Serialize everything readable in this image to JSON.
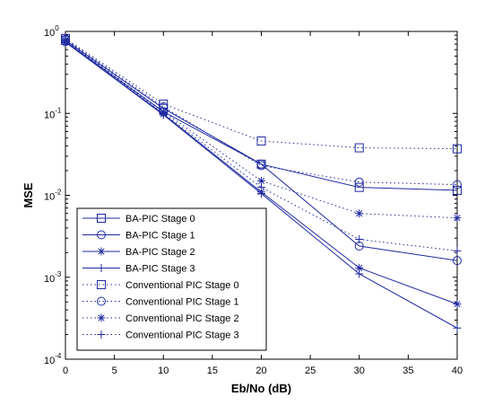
{
  "chart_data": {
    "type": "line",
    "title": "",
    "xlabel": "Eb/No (dB)",
    "ylabel": "MSE",
    "xlim": [
      0,
      40
    ],
    "ylim": [
      0.0001,
      1
    ],
    "yscale": "log",
    "grid": false,
    "legend_position": "bottom-left",
    "x_ticks": [
      "0",
      "5",
      "10",
      "15",
      "20",
      "25",
      "30",
      "35",
      "40"
    ],
    "y_ticks": [
      {
        "base": "10",
        "exp": "0"
      },
      {
        "base": "10",
        "exp": "-1"
      },
      {
        "base": "10",
        "exp": "-2"
      },
      {
        "base": "10",
        "exp": "-3"
      },
      {
        "base": "10",
        "exp": "-4"
      }
    ],
    "x": [
      0,
      10,
      20,
      30,
      40
    ],
    "series": [
      {
        "name": "BA-PIC  Stage 0",
        "marker": "square",
        "line": "solid",
        "values": [
          0.78,
          0.115,
          0.024,
          0.0125,
          0.0115
        ]
      },
      {
        "name": "BA-PIC  Stage 1",
        "marker": "circle",
        "line": "solid",
        "values": [
          0.75,
          0.105,
          0.024,
          0.0024,
          0.0016
        ]
      },
      {
        "name": "BA-PIC  Stage 2",
        "marker": "star",
        "line": "solid",
        "values": [
          0.74,
          0.098,
          0.011,
          0.0013,
          0.00047
        ]
      },
      {
        "name": "BA-PIC  Stage 3",
        "marker": "plus",
        "line": "solid",
        "values": [
          0.74,
          0.096,
          0.0105,
          0.0011,
          0.00024
        ]
      },
      {
        "name": "Conventional PIC Stage 0",
        "marker": "square",
        "line": "dotted",
        "values": [
          0.82,
          0.13,
          0.046,
          0.038,
          0.037
        ]
      },
      {
        "name": "Conventional PIC Stage 1",
        "marker": "circle",
        "line": "dotted",
        "values": [
          0.8,
          0.12,
          0.023,
          0.0145,
          0.0135
        ]
      },
      {
        "name": "Conventional PIC Stage 2",
        "marker": "star",
        "line": "dotted",
        "values": [
          0.78,
          0.105,
          0.015,
          0.006,
          0.0053
        ]
      },
      {
        "name": "Conventional PIC Stage 3",
        "marker": "plus",
        "line": "dotted",
        "values": [
          0.77,
          0.1,
          0.0125,
          0.0029,
          0.0021
        ]
      }
    ],
    "colors": {
      "series": "#1f2aa0",
      "axis": "#000000",
      "background": "#ffffff"
    }
  }
}
